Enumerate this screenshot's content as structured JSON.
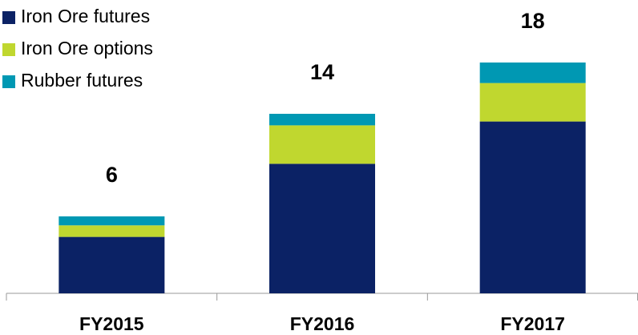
{
  "chart_data": {
    "type": "stacked_bar",
    "categories": [
      "FY2015",
      "FY2016",
      "FY2017"
    ],
    "series": [
      {
        "name": "Iron Ore futures",
        "color": "#0b2265",
        "values": [
          4.4,
          10.1,
          13.4
        ]
      },
      {
        "name": "Iron Ore options",
        "color": "#c0d72f",
        "values": [
          0.9,
          3.0,
          3.0
        ]
      },
      {
        "name": "Rubber futures",
        "color": "#0098b3",
        "values": [
          0.7,
          0.9,
          1.6
        ]
      }
    ],
    "totals": [
      6,
      14,
      18
    ],
    "legend": "top-left"
  }
}
